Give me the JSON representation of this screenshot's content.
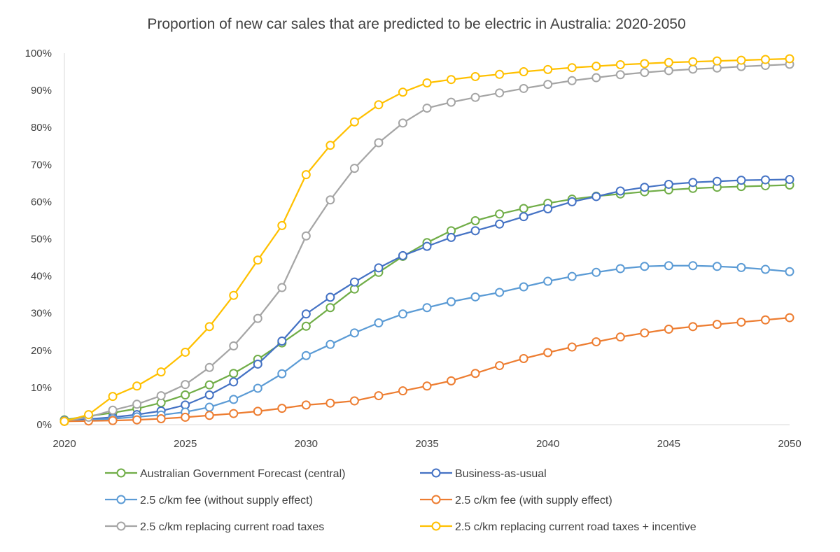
{
  "chart_data": {
    "type": "line",
    "title": "Proportion of new car sales that are predicted to be electric in Australia: 2020-2050",
    "xlabel": "",
    "ylabel": "",
    "xlim": [
      2020,
      2050
    ],
    "ylim": [
      0,
      100
    ],
    "x_ticks": [
      2020,
      2025,
      2030,
      2035,
      2040,
      2045,
      2050
    ],
    "y_tick_labels": [
      "0%",
      "10%",
      "20%",
      "30%",
      "40%",
      "50%",
      "60%",
      "70%",
      "80%",
      "90%",
      "100%"
    ],
    "y_ticks": [
      0,
      10,
      20,
      30,
      40,
      50,
      60,
      70,
      80,
      90,
      100
    ],
    "grid": false,
    "legend_position": "bottom",
    "x": [
      2020,
      2021,
      2022,
      2023,
      2024,
      2025,
      2026,
      2027,
      2028,
      2029,
      2030,
      2031,
      2032,
      2033,
      2034,
      2035,
      2036,
      2037,
      2038,
      2039,
      2040,
      2041,
      2042,
      2043,
      2044,
      2045,
      2046,
      2047,
      2048,
      2049,
      2050
    ],
    "series": [
      {
        "name": "Australian Government Forecast (central)",
        "color": "#70AD47",
        "values": [
          1.3,
          2.3,
          3.2,
          4.3,
          5.9,
          8.0,
          10.7,
          13.8,
          17.6,
          22.0,
          26.5,
          31.5,
          36.5,
          41.0,
          45.3,
          49.0,
          52.2,
          54.9,
          56.7,
          58.2,
          59.6,
          60.7,
          61.5,
          62.1,
          62.7,
          63.2,
          63.6,
          63.9,
          64.1,
          64.3,
          64.5
        ]
      },
      {
        "name": "Business-as-usual",
        "color": "#4472C4",
        "values": [
          1.1,
          1.5,
          2.0,
          2.7,
          3.7,
          5.3,
          8.0,
          11.5,
          16.3,
          22.5,
          29.8,
          34.3,
          38.4,
          42.2,
          45.5,
          48.0,
          50.4,
          52.2,
          54.0,
          56.0,
          58.1,
          60.0,
          61.4,
          62.9,
          63.9,
          64.7,
          65.2,
          65.5,
          65.8,
          65.9,
          66.0
        ]
      },
      {
        "name": "2.5 c/km fee (without supply effect)",
        "color": "#5B9BD5",
        "values": [
          0.9,
          1.2,
          1.6,
          2.1,
          2.6,
          3.4,
          4.7,
          6.8,
          9.8,
          13.7,
          18.6,
          21.6,
          24.7,
          27.4,
          29.8,
          31.5,
          33.1,
          34.4,
          35.6,
          37.1,
          38.6,
          39.9,
          41.0,
          42.0,
          42.6,
          42.8,
          42.8,
          42.6,
          42.3,
          41.8,
          41.2
        ]
      },
      {
        "name": "2.5 c/km fee (with supply effect)",
        "color": "#ED7D31",
        "values": [
          0.9,
          1.0,
          1.1,
          1.3,
          1.6,
          2.0,
          2.5,
          3.0,
          3.6,
          4.4,
          5.3,
          5.8,
          6.4,
          7.8,
          9.1,
          10.4,
          11.8,
          13.8,
          15.9,
          17.8,
          19.4,
          20.9,
          22.3,
          23.6,
          24.7,
          25.7,
          26.4,
          27.0,
          27.6,
          28.2,
          28.8
        ]
      },
      {
        "name": "2.5 c/km replacing current road taxes",
        "color": "#A5A5A5",
        "values": [
          1.0,
          2.0,
          3.9,
          5.5,
          7.8,
          10.8,
          15.4,
          21.2,
          28.6,
          36.9,
          50.8,
          60.5,
          69.0,
          75.9,
          81.2,
          85.2,
          86.8,
          88.1,
          89.3,
          90.5,
          91.6,
          92.6,
          93.4,
          94.2,
          94.8,
          95.3,
          95.7,
          96.0,
          96.4,
          96.7,
          97.0
        ]
      },
      {
        "name": "2.5 c/km replacing current road taxes + incentive",
        "color": "#FFC000",
        "values": [
          0.9,
          2.7,
          7.6,
          10.4,
          14.2,
          19.5,
          26.4,
          34.8,
          44.3,
          53.6,
          67.3,
          75.2,
          81.5,
          86.1,
          89.5,
          92.0,
          92.9,
          93.7,
          94.3,
          95.0,
          95.6,
          96.1,
          96.5,
          96.9,
          97.2,
          97.5,
          97.7,
          97.9,
          98.1,
          98.3,
          98.5
        ]
      }
    ]
  }
}
